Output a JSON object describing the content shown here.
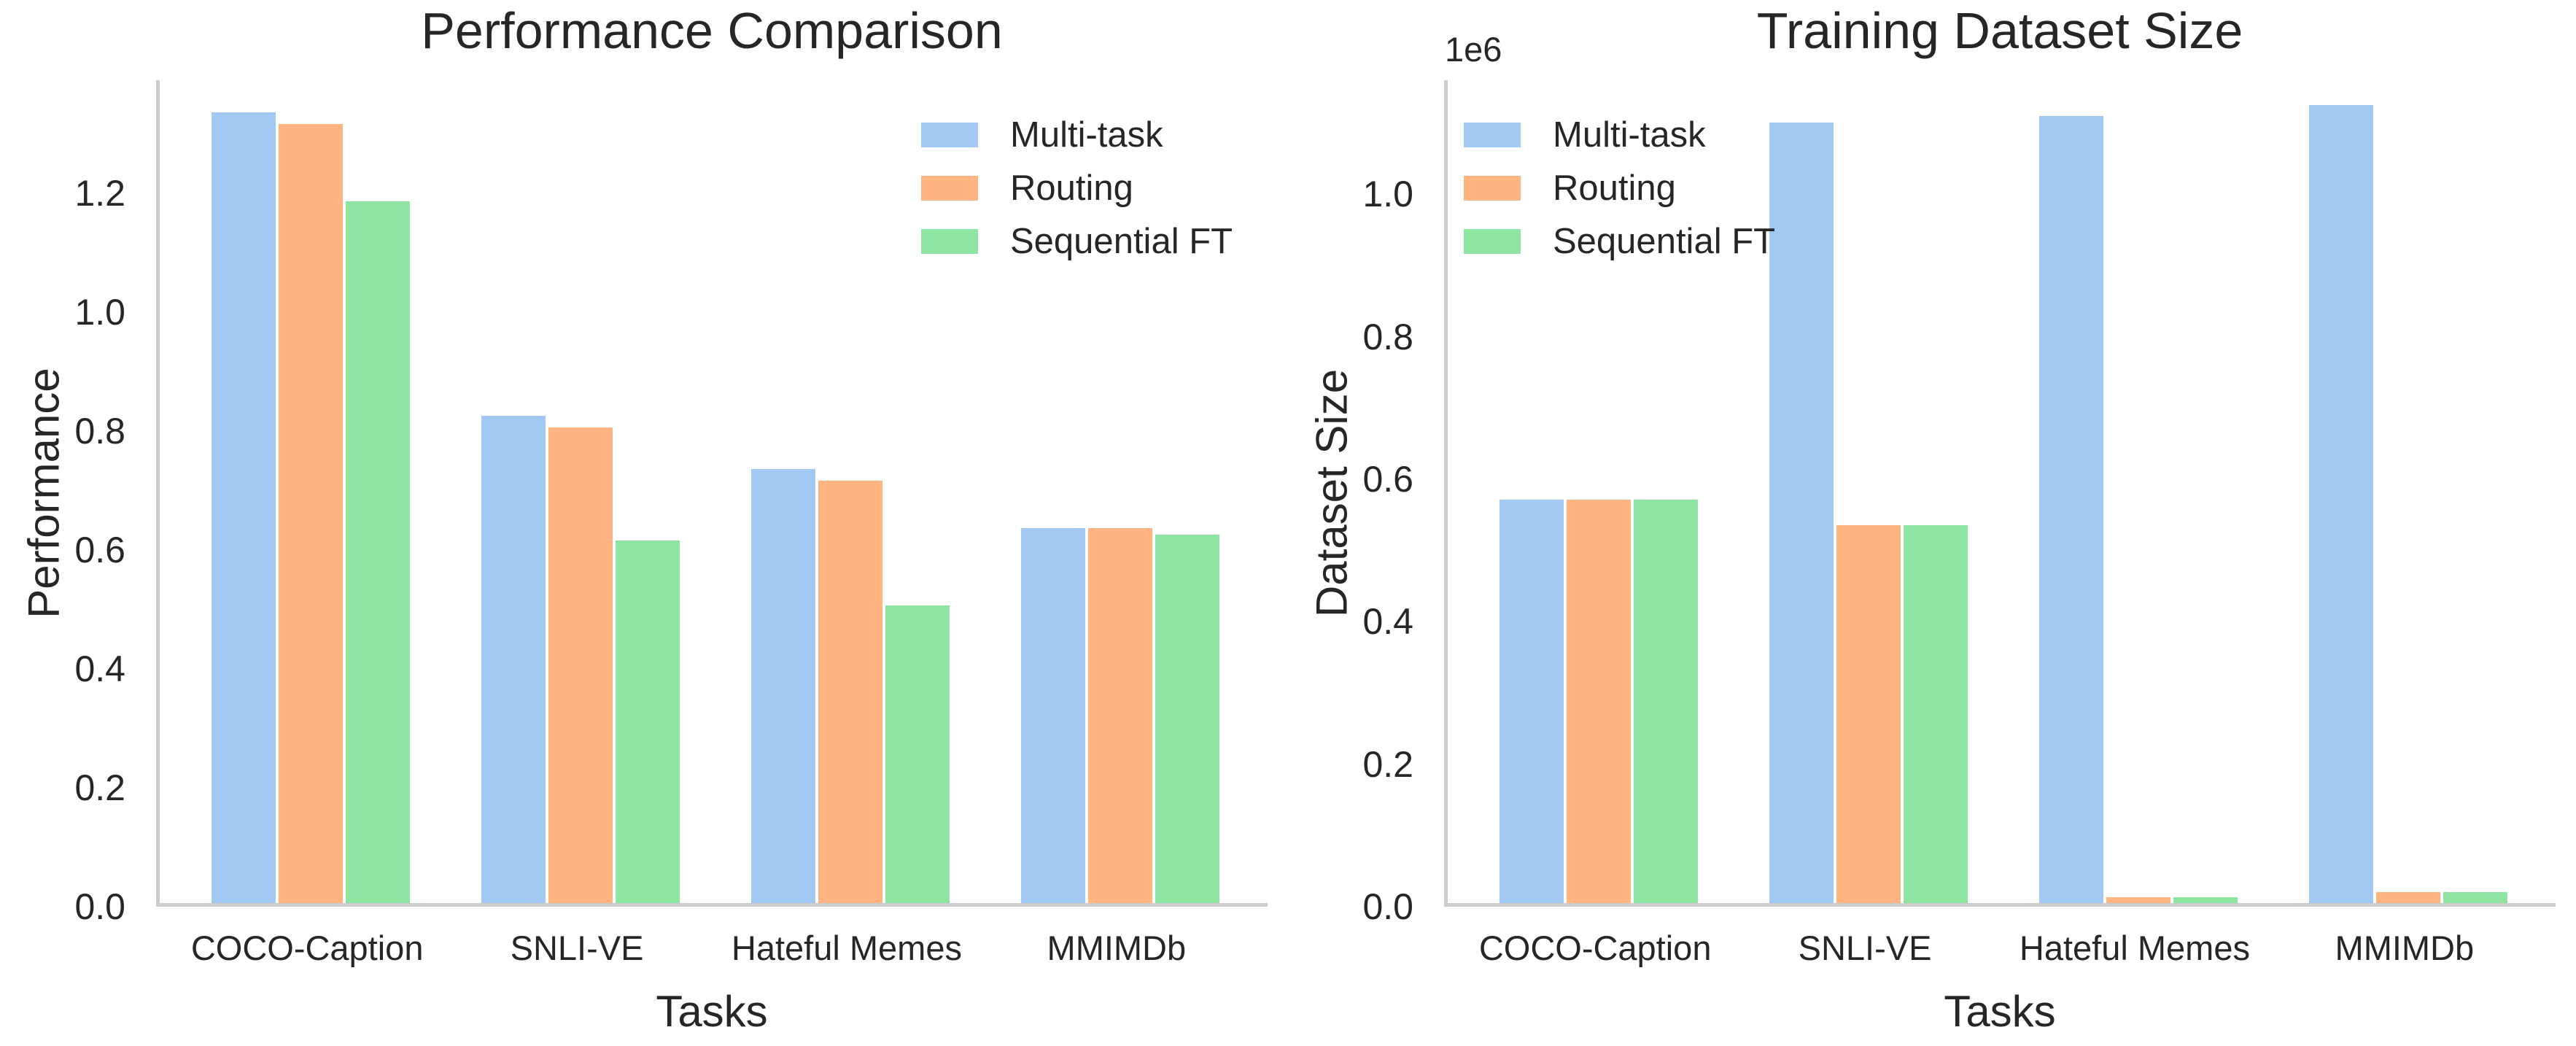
{
  "figure": {
    "background": "#ffffff",
    "text_color": "#262626",
    "axis_color": "#cccccc"
  },
  "legend": {
    "items": [
      {
        "label": "Multi-task",
        "color": "#a1c9f4"
      },
      {
        "label": "Routing",
        "color": "#ffb482"
      },
      {
        "label": "Sequential FT",
        "color": "#8de5a1"
      }
    ]
  },
  "chart_data": [
    {
      "type": "bar",
      "title": "Performance Comparison",
      "xlabel": "Tasks",
      "ylabel": "Performance",
      "categories": [
        "COCO-Caption",
        "SNLI-VE",
        "Hateful Memes",
        "MMIMDb"
      ],
      "series": [
        {
          "name": "Multi-task",
          "values": [
            1.33,
            0.82,
            0.73,
            0.63
          ]
        },
        {
          "name": "Routing",
          "values": [
            1.31,
            0.8,
            0.71,
            0.63
          ]
        },
        {
          "name": "Sequential FT",
          "values": [
            1.18,
            0.61,
            0.5,
            0.62
          ]
        }
      ],
      "ylim": [
        0,
        1.39
      ],
      "yticks": [
        0.0,
        0.2,
        0.4,
        0.6,
        0.8,
        1.0,
        1.2
      ],
      "ytick_labels": [
        "0.0",
        "0.2",
        "0.4",
        "0.6",
        "0.8",
        "1.0",
        "1.2"
      ],
      "legend_position": "upper right",
      "grid": false
    },
    {
      "type": "bar",
      "title": "Training Dataset Size",
      "xlabel": "Tasks",
      "ylabel": "Dataset Size",
      "offset_label": "1e6",
      "categories": [
        "COCO-Caption",
        "SNLI-VE",
        "Hateful Memes",
        "MMIMDb"
      ],
      "series": [
        {
          "name": "Multi-task",
          "values": [
            566000,
            1096000,
            1105000,
            1120000
          ]
        },
        {
          "name": "Routing",
          "values": [
            566000,
            530000,
            8500,
            15500
          ]
        },
        {
          "name": "Sequential FT",
          "values": [
            566000,
            530000,
            8500,
            15500
          ]
        }
      ],
      "ylim": [
        0,
        1160000
      ],
      "yticks": [
        0,
        200000,
        400000,
        600000,
        800000,
        1000000
      ],
      "ytick_labels": [
        "0.0",
        "0.2",
        "0.4",
        "0.6",
        "0.8",
        "1.0"
      ],
      "legend_position": "upper left",
      "grid": false
    }
  ]
}
